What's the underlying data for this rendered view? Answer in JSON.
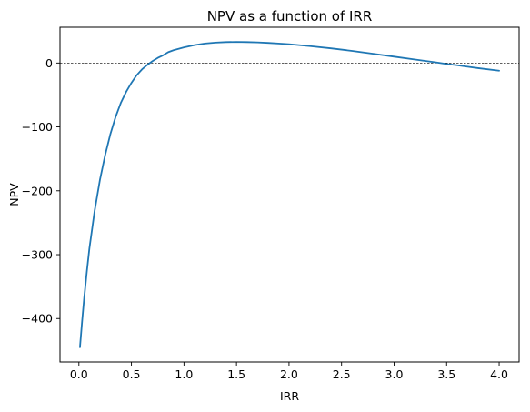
{
  "chart_data": {
    "type": "line",
    "title": "NPV as a function of IRR",
    "xlabel": "IRR",
    "ylabel": "NPV",
    "xlim": [
      -0.18,
      4.19
    ],
    "ylim": [
      -468,
      56
    ],
    "grid": false,
    "legend": "none",
    "xticks": [
      0.0,
      0.5,
      1.0,
      1.5,
      2.0,
      2.5,
      3.0,
      3.5,
      4.0
    ],
    "xtick_labels": [
      "0.0",
      "0.5",
      "1.0",
      "1.5",
      "2.0",
      "2.5",
      "3.0",
      "3.5",
      "4.0"
    ],
    "yticks": [
      -400,
      -300,
      -200,
      -100,
      0
    ],
    "ytick_labels": [
      "−400",
      "−300",
      "−200",
      "−100",
      "0"
    ],
    "reference_line": {
      "y": 0,
      "style": "dashed",
      "color": "#000000"
    },
    "series": [
      {
        "color": "#1f77b4",
        "x": [
          0.01,
          0.03,
          0.05,
          0.075,
          0.1,
          0.15,
          0.2,
          0.25,
          0.3,
          0.35,
          0.4,
          0.45,
          0.5,
          0.55,
          0.6,
          0.65,
          0.7,
          0.75,
          0.8,
          0.85,
          0.9,
          1.0,
          1.1,
          1.2,
          1.3,
          1.4,
          1.5,
          1.6,
          1.7,
          1.8,
          1.9,
          2.0,
          2.2,
          2.4,
          2.6,
          2.8,
          3.0,
          3.2,
          3.4,
          3.5,
          3.6,
          3.8,
          4.0
        ],
        "y": [
          -445,
          -405,
          -368,
          -327,
          -290,
          -231,
          -183,
          -144,
          -111,
          -84,
          -62,
          -45,
          -31,
          -19,
          -10,
          -3,
          3,
          8,
          12,
          17,
          20,
          24.5,
          28,
          30.5,
          32,
          32.8,
          33,
          32.8,
          32.3,
          31.5,
          30.6,
          29.5,
          26.5,
          23,
          19,
          14.5,
          10,
          5.5,
          1,
          -1.5,
          -3.5,
          -8,
          -12
        ]
      }
    ]
  }
}
